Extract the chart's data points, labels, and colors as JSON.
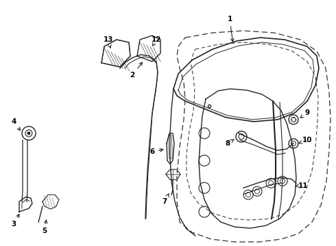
{
  "bg_color": "#ffffff",
  "line_color": "#222222",
  "dash_color": "#444444",
  "label_color": "#000000",
  "figsize": [
    4.9,
    3.6
  ],
  "dpi": 100
}
